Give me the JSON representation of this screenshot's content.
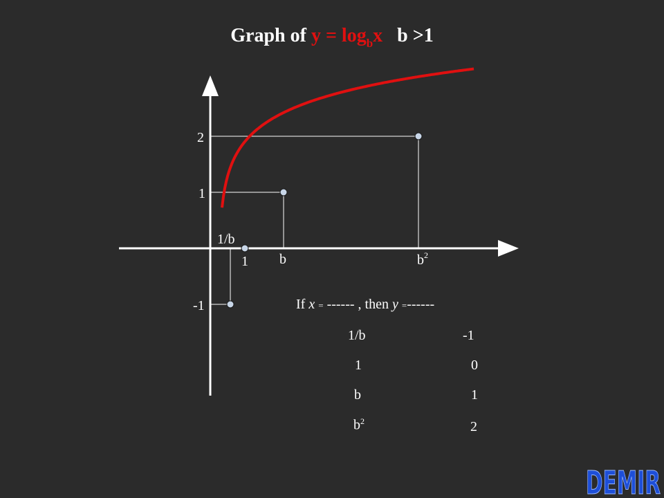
{
  "title": {
    "prefix": "Graph of",
    "equation_main": "y = log",
    "equation_sub": "b",
    "equation_var": "x",
    "condition": "b >1"
  },
  "chart_data": {
    "type": "line",
    "title": "Graph of y = log_b x   b >1",
    "xlabel": "",
    "ylabel": "",
    "x_ticks": [
      "1/b",
      "1",
      "b",
      "b²"
    ],
    "y_ticks": [
      "2",
      "1",
      "-1"
    ],
    "series": [
      {
        "color": "#e01010",
        "points": [
          {
            "x": "1/b",
            "y": -1
          },
          {
            "x": "1",
            "y": 0
          },
          {
            "x": "b",
            "y": 1
          },
          {
            "x": "b²",
            "y": 2
          }
        ]
      }
    ],
    "marked_points": [
      {
        "x": "1/b",
        "y": -1
      },
      {
        "x": "1",
        "y": 0
      },
      {
        "x": "b",
        "y": 1
      },
      {
        "x": "b²",
        "y": 2
      }
    ]
  },
  "table": {
    "header_if": "If",
    "header_x": "x",
    "header_eq": "=",
    "header_dash1": "------",
    "header_then": ", then",
    "header_y": "y",
    "header_dash2": "------",
    "rows": [
      {
        "x": "1/b",
        "y": "-1"
      },
      {
        "x": "1",
        "y": "0"
      },
      {
        "x": "b",
        "y": "1"
      },
      {
        "x": "b",
        "x_sup": "2",
        "y": "2"
      }
    ]
  },
  "logo": {
    "text": "DEMIR",
    "color": "#1e4fd8"
  }
}
